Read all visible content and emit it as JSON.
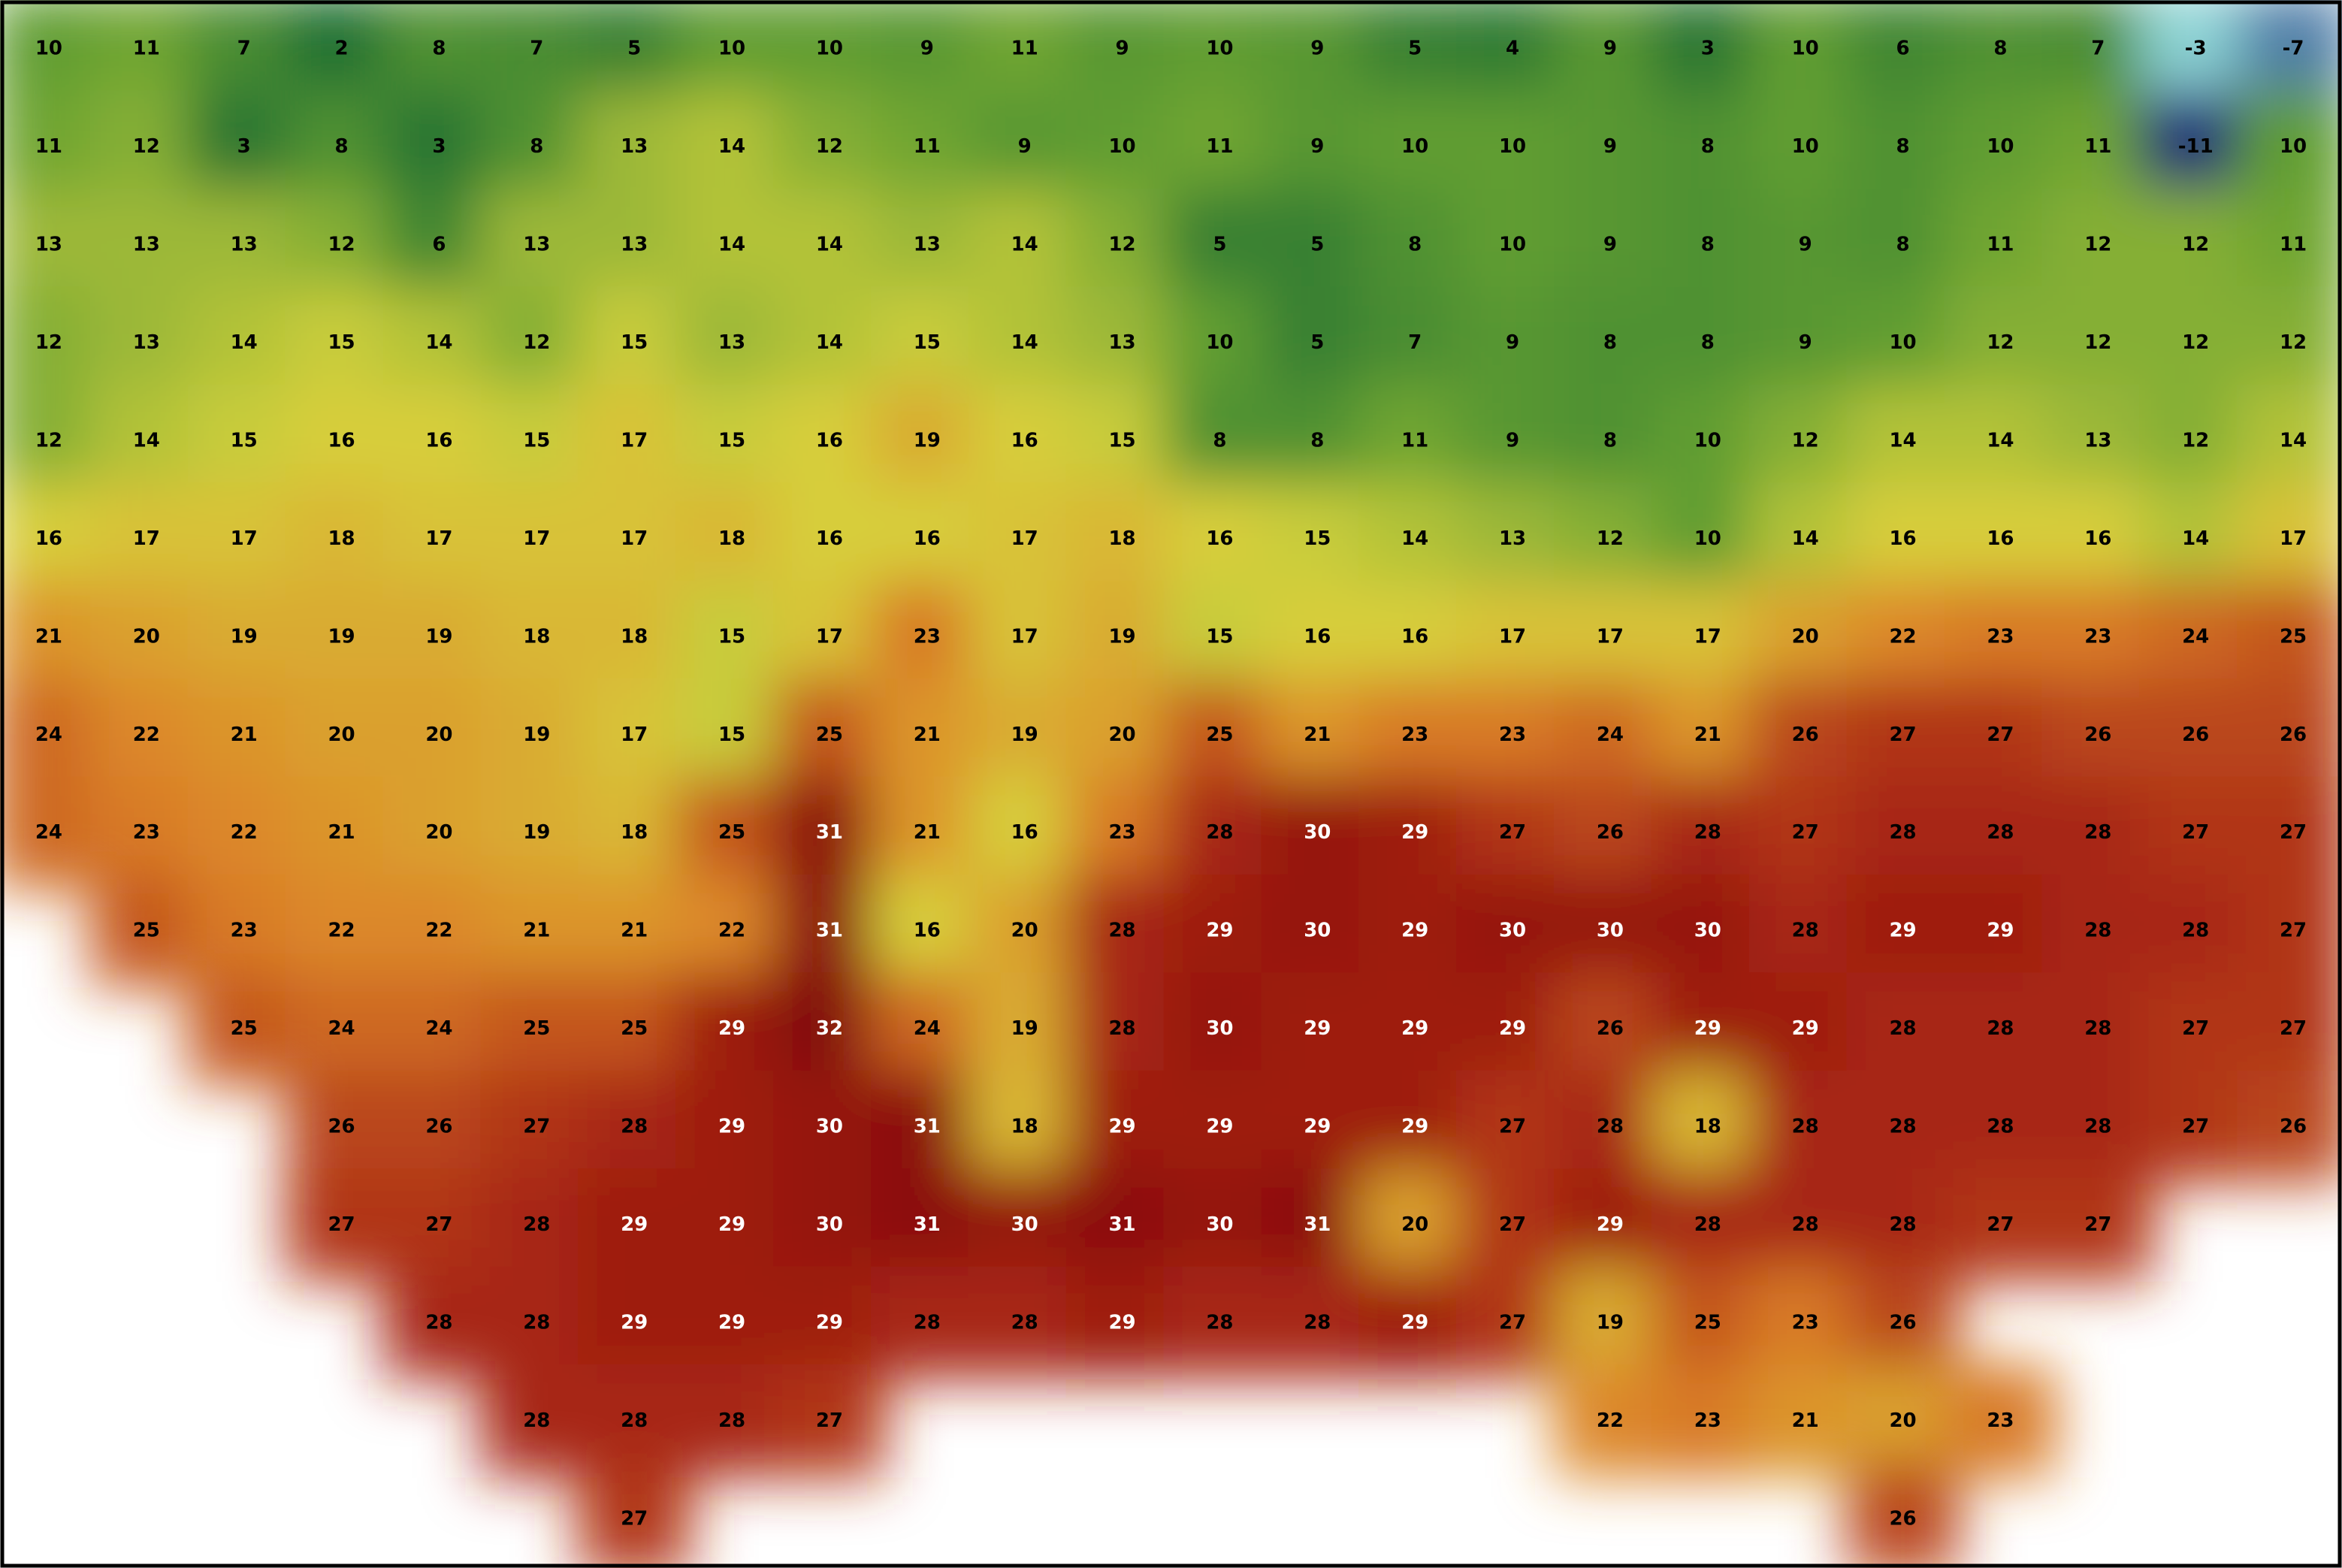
{
  "temperature_map": {
    "rows": [
      [
        10,
        11,
        7,
        2,
        8,
        7,
        5,
        10,
        10,
        9,
        11,
        9,
        10,
        9,
        5,
        4,
        9,
        3,
        10,
        6,
        8,
        7,
        -3,
        -7
      ],
      [
        11,
        12,
        3,
        8,
        3,
        8,
        13,
        14,
        12,
        11,
        9,
        10,
        11,
        9,
        10,
        10,
        9,
        8,
        10,
        8,
        10,
        11,
        -11,
        10
      ],
      [
        13,
        13,
        13,
        12,
        6,
        13,
        13,
        14,
        14,
        13,
        14,
        12,
        5,
        5,
        8,
        10,
        9,
        8,
        9,
        8,
        11,
        12,
        12,
        11
      ],
      [
        12,
        13,
        14,
        15,
        14,
        12,
        15,
        13,
        14,
        15,
        14,
        13,
        10,
        5,
        7,
        9,
        8,
        8,
        9,
        10,
        12,
        12,
        12,
        12
      ],
      [
        12,
        14,
        15,
        16,
        16,
        15,
        17,
        15,
        16,
        19,
        16,
        15,
        8,
        8,
        11,
        9,
        8,
        10,
        12,
        14,
        14,
        13,
        12,
        14
      ],
      [
        16,
        17,
        17,
        18,
        17,
        17,
        17,
        18,
        16,
        16,
        17,
        18,
        16,
        15,
        14,
        13,
        12,
        10,
        14,
        16,
        16,
        16,
        14,
        17
      ],
      [
        21,
        20,
        19,
        19,
        19,
        18,
        18,
        15,
        17,
        23,
        17,
        19,
        15,
        16,
        16,
        17,
        17,
        17,
        20,
        22,
        23,
        23,
        24,
        25
      ],
      [
        24,
        22,
        21,
        20,
        20,
        19,
        17,
        15,
        25,
        21,
        19,
        20,
        25,
        21,
        23,
        23,
        24,
        21,
        26,
        27,
        27,
        26,
        26,
        26
      ],
      [
        24,
        23,
        22,
        21,
        20,
        19,
        18,
        25,
        31,
        21,
        16,
        23,
        28,
        30,
        29,
        27,
        26,
        28,
        27,
        28,
        28,
        28,
        27,
        27
      ],
      [
        null,
        25,
        23,
        22,
        22,
        21,
        21,
        22,
        31,
        16,
        20,
        28,
        29,
        30,
        29,
        30,
        30,
        30,
        28,
        29,
        29,
        28,
        28,
        27
      ],
      [
        null,
        null,
        25,
        24,
        24,
        25,
        25,
        29,
        32,
        24,
        19,
        28,
        30,
        29,
        29,
        29,
        26,
        29,
        29,
        28,
        28,
        28,
        27,
        27
      ],
      [
        null,
        null,
        null,
        26,
        26,
        27,
        28,
        29,
        30,
        31,
        18,
        29,
        29,
        29,
        29,
        27,
        28,
        18,
        28,
        28,
        28,
        28,
        27,
        26
      ],
      [
        null,
        null,
        null,
        27,
        27,
        28,
        29,
        29,
        30,
        31,
        30,
        31,
        30,
        31,
        20,
        27,
        29,
        28,
        28,
        28,
        27,
        27,
        null,
        null
      ],
      [
        null,
        null,
        null,
        null,
        28,
        28,
        29,
        29,
        29,
        28,
        28,
        29,
        28,
        28,
        29,
        27,
        19,
        25,
        23,
        26,
        null,
        null,
        null,
        null
      ],
      [
        null,
        null,
        null,
        null,
        null,
        28,
        28,
        28,
        27,
        null,
        null,
        null,
        null,
        null,
        null,
        null,
        22,
        23,
        21,
        20,
        23,
        null,
        null,
        null
      ],
      [
        null,
        null,
        null,
        null,
        null,
        null,
        27,
        null,
        null,
        null,
        null,
        null,
        null,
        null,
        null,
        null,
        null,
        null,
        null,
        26,
        null,
        null,
        null,
        null
      ]
    ]
  }
}
